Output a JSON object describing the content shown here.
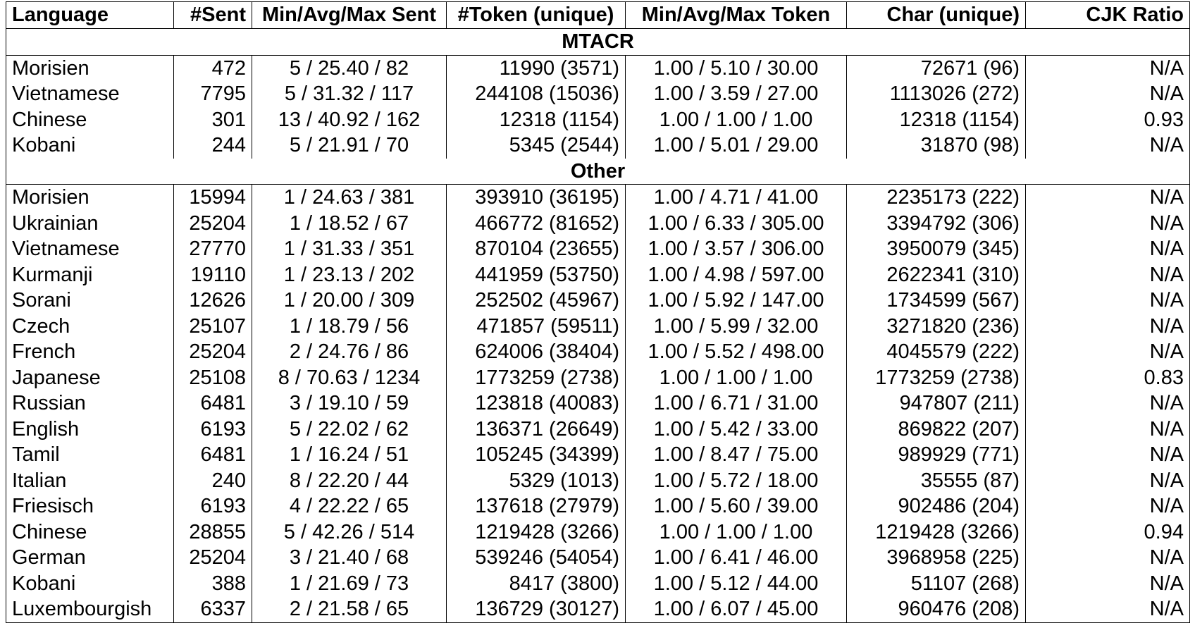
{
  "headers": [
    "Language",
    "#Sent",
    "Min/Avg/Max Sent",
    "#Token (unique)",
    "Min/Avg/Max Token",
    "Char (unique)",
    "CJK Ratio"
  ],
  "sections": [
    {
      "title": "MTACR",
      "rows": [
        [
          "Morisien",
          "472",
          "5 / 25.40 / 82",
          "11990 (3571)",
          "1.00 / 5.10 / 30.00",
          "72671 (96)",
          "N/A"
        ],
        [
          "Vietnamese",
          "7795",
          "5 / 31.32 / 117",
          "244108 (15036)",
          "1.00 / 3.59 / 27.00",
          "1113026 (272)",
          "N/A"
        ],
        [
          "Chinese",
          "301",
          "13 / 40.92 / 162",
          "12318 (1154)",
          "1.00 / 1.00 / 1.00",
          "12318 (1154)",
          "0.93"
        ],
        [
          "Kobani",
          "244",
          "5 / 21.91 / 70",
          "5345 (2544)",
          "1.00 / 5.01 / 29.00",
          "31870 (98)",
          "N/A"
        ]
      ]
    },
    {
      "title": "Other",
      "rows": [
        [
          "Morisien",
          "15994",
          "1 / 24.63 / 381",
          "393910 (36195)",
          "1.00 / 4.71 / 41.00",
          "2235173 (222)",
          "N/A"
        ],
        [
          "Ukrainian",
          "25204",
          "1 / 18.52 / 67",
          "466772 (81652)",
          "1.00 / 6.33 / 305.00",
          "3394792 (306)",
          "N/A"
        ],
        [
          "Vietnamese",
          "27770",
          "1 / 31.33 / 351",
          "870104 (23655)",
          "1.00 / 3.57 / 306.00",
          "3950079 (345)",
          "N/A"
        ],
        [
          "Kurmanji",
          "19110",
          "1 / 23.13 / 202",
          "441959 (53750)",
          "1.00 / 4.98 / 597.00",
          "2622341 (310)",
          "N/A"
        ],
        [
          "Sorani",
          "12626",
          "1 / 20.00 / 309",
          "252502 (45967)",
          "1.00 / 5.92 / 147.00",
          "1734599 (567)",
          "N/A"
        ],
        [
          "Czech",
          "25107",
          "1 / 18.79 / 56",
          "471857 (59511)",
          "1.00 / 5.99 / 32.00",
          "3271820 (236)",
          "N/A"
        ],
        [
          "French",
          "25204",
          "2 / 24.76 / 86",
          "624006 (38404)",
          "1.00 / 5.52 / 498.00",
          "4045579 (222)",
          "N/A"
        ],
        [
          "Japanese",
          "25108",
          "8 / 70.63 / 1234",
          "1773259 (2738)",
          "1.00 / 1.00 / 1.00",
          "1773259 (2738)",
          "0.83"
        ],
        [
          "Russian",
          "6481",
          "3 / 19.10 / 59",
          "123818 (40083)",
          "1.00 / 6.71 / 31.00",
          "947807 (211)",
          "N/A"
        ],
        [
          "English",
          "6193",
          "5 / 22.02 / 62",
          "136371 (26649)",
          "1.00 / 5.42 / 33.00",
          "869822 (207)",
          "N/A"
        ],
        [
          "Tamil",
          "6481",
          "1 / 16.24 / 51",
          "105245 (34399)",
          "1.00 / 8.47 / 75.00",
          "989929 (771)",
          "N/A"
        ],
        [
          "Italian",
          "240",
          "8 / 22.20 / 44",
          "5329 (1013)",
          "1.00 / 5.72 / 18.00",
          "35555 (87)",
          "N/A"
        ],
        [
          "Friesisch",
          "6193",
          "4 / 22.22 / 65",
          "137618 (27979)",
          "1.00 / 5.60 / 39.00",
          "902486 (204)",
          "N/A"
        ],
        [
          "Chinese",
          "28855",
          "5 / 42.26 / 514",
          "1219428 (3266)",
          "1.00 / 1.00 / 1.00",
          "1219428 (3266)",
          "0.94"
        ],
        [
          "German",
          "25204",
          "3 / 21.40 / 68",
          "539246 (54054)",
          "1.00 / 6.41 / 46.00",
          "3968958 (225)",
          "N/A"
        ],
        [
          "Kobani",
          "388",
          "1 / 21.69 / 73",
          "8417 (3800)",
          "1.00 / 5.12 / 44.00",
          "51107 (268)",
          "N/A"
        ],
        [
          "Luxembourgish",
          "6337",
          "2 / 21.58 / 65",
          "136729 (30127)",
          "1.00 / 6.07 / 45.00",
          "960476 (208)",
          "N/A"
        ]
      ]
    }
  ]
}
